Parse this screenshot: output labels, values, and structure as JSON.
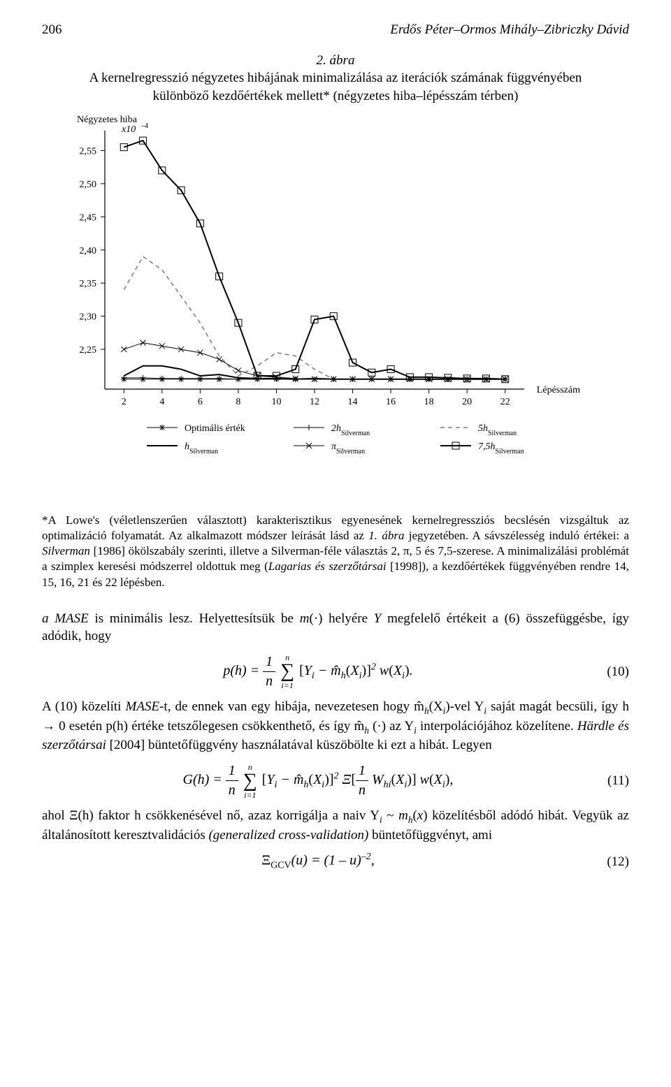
{
  "page_number": "206",
  "authors": "Erdős Péter–Ormos Mihály–Zibriczky Dávid",
  "figure": {
    "number": "2. ábra",
    "title_line1": "A kernelregresszió négyzetes hibájának minimalizálása az iterációk számának függvényében",
    "title_line2": "különböző kezdőértékek mellett* (négyzetes hiba–lépésszám térben)",
    "ylabel": "Négyzetes hiba",
    "yunit_prefix": "x",
    "yunit_base": "10",
    "yunit_exp": "–4",
    "xlabel": "Lépésszám",
    "xticks": [
      2,
      4,
      6,
      8,
      10,
      12,
      14,
      16,
      18,
      20,
      22
    ],
    "yticks": [
      2.25,
      2.3,
      2.35,
      2.4,
      2.45,
      2.5,
      2.55
    ],
    "ytick_labels": [
      "2,25",
      "2,30",
      "2,35",
      "2,40",
      "2,45",
      "2,50",
      "2,55"
    ],
    "ylim": [
      2.19,
      2.58
    ],
    "xlim": [
      1,
      23
    ],
    "plot_bg": "#ffffff",
    "axis_color": "#000000",
    "axis_width": 1.2,
    "series": {
      "optimal": {
        "label_pre": "Optimális érték",
        "color": "#000000",
        "width": 1.0,
        "marker": "star",
        "marker_size": 4,
        "points": [
          [
            2,
            2.205
          ],
          [
            3,
            2.205
          ],
          [
            4,
            2.205
          ],
          [
            5,
            2.205
          ],
          [
            6,
            2.205
          ],
          [
            7,
            2.205
          ],
          [
            8,
            2.205
          ],
          [
            9,
            2.205
          ],
          [
            10,
            2.205
          ],
          [
            11,
            2.205
          ],
          [
            12,
            2.205
          ],
          [
            13,
            2.205
          ],
          [
            14,
            2.205
          ],
          [
            15,
            2.205
          ],
          [
            16,
            2.205
          ],
          [
            17,
            2.205
          ],
          [
            18,
            2.205
          ],
          [
            19,
            2.205
          ],
          [
            20,
            2.205
          ],
          [
            21,
            2.205
          ],
          [
            22,
            2.205
          ]
        ]
      },
      "h": {
        "label_pre": "h",
        "label_sub": "Silverman",
        "color": "#000000",
        "width": 2.0,
        "marker": "none",
        "points": [
          [
            2,
            2.21
          ],
          [
            3,
            2.225
          ],
          [
            4,
            2.225
          ],
          [
            5,
            2.22
          ],
          [
            6,
            2.21
          ],
          [
            7,
            2.212
          ],
          [
            8,
            2.207
          ],
          [
            9,
            2.206
          ],
          [
            10,
            2.206
          ],
          [
            11,
            2.205
          ],
          [
            12,
            2.206
          ],
          [
            13,
            2.205
          ],
          [
            14,
            2.205
          ],
          [
            15,
            2.205
          ],
          [
            16,
            2.205
          ],
          [
            17,
            2.205
          ],
          [
            18,
            2.205
          ],
          [
            19,
            2.205
          ],
          [
            20,
            2.205
          ],
          [
            21,
            2.205
          ],
          [
            22,
            2.205
          ]
        ]
      },
      "two_h": {
        "label_pre": "2h",
        "label_sub": "Silverman",
        "color": "#000000",
        "width": 1.0,
        "marker": "plus",
        "marker_size": 4,
        "points": [
          [
            2,
            2.207
          ],
          [
            3,
            2.207
          ],
          [
            4,
            2.206
          ],
          [
            5,
            2.206
          ],
          [
            6,
            2.206
          ],
          [
            7,
            2.206
          ],
          [
            8,
            2.205
          ],
          [
            9,
            2.205
          ],
          [
            10,
            2.205
          ],
          [
            11,
            2.205
          ],
          [
            12,
            2.205
          ],
          [
            13,
            2.205
          ],
          [
            14,
            2.205
          ],
          [
            15,
            2.205
          ],
          [
            16,
            2.205
          ],
          [
            17,
            2.205
          ],
          [
            18,
            2.205
          ],
          [
            19,
            2.205
          ],
          [
            20,
            2.205
          ],
          [
            21,
            2.205
          ],
          [
            22,
            2.205
          ]
        ]
      },
      "pi": {
        "label_pre": "π",
        "label_sub": "Silverman",
        "color": "#000000",
        "width": 1.0,
        "marker": "x",
        "marker_size": 4,
        "points": [
          [
            2,
            2.25
          ],
          [
            3,
            2.26
          ],
          [
            4,
            2.255
          ],
          [
            5,
            2.25
          ],
          [
            6,
            2.245
          ],
          [
            7,
            2.235
          ],
          [
            8,
            2.218
          ],
          [
            9,
            2.21
          ],
          [
            10,
            2.208
          ],
          [
            11,
            2.206
          ],
          [
            12,
            2.205
          ],
          [
            13,
            2.205
          ],
          [
            14,
            2.205
          ],
          [
            15,
            2.205
          ],
          [
            16,
            2.205
          ],
          [
            17,
            2.205
          ],
          [
            18,
            2.205
          ],
          [
            19,
            2.205
          ],
          [
            20,
            2.205
          ],
          [
            21,
            2.205
          ],
          [
            22,
            2.205
          ]
        ]
      },
      "five_h": {
        "label_pre": "5h",
        "label_sub": "Silverman",
        "color": "#808080",
        "width": 1.6,
        "dash": "6,5",
        "marker": "none",
        "points": [
          [
            2,
            2.34
          ],
          [
            3,
            2.39
          ],
          [
            4,
            2.37
          ],
          [
            5,
            2.33
          ],
          [
            6,
            2.29
          ],
          [
            7,
            2.24
          ],
          [
            8,
            2.21
          ],
          [
            9,
            2.225
          ],
          [
            10,
            2.245
          ],
          [
            11,
            2.24
          ],
          [
            12,
            2.22
          ],
          [
            13,
            2.205
          ],
          [
            14,
            2.205
          ],
          [
            15,
            2.205
          ],
          [
            16,
            2.205
          ],
          [
            17,
            2.205
          ],
          [
            18,
            2.205
          ],
          [
            19,
            2.205
          ],
          [
            20,
            2.205
          ],
          [
            21,
            2.205
          ],
          [
            22,
            2.205
          ]
        ]
      },
      "seven5_h": {
        "label_pre": "7,5h",
        "label_sub": "Silverman",
        "color": "#000000",
        "width": 2.0,
        "marker": "square",
        "marker_size": 5,
        "points": [
          [
            2,
            2.555
          ],
          [
            3,
            2.565
          ],
          [
            4,
            2.52
          ],
          [
            5,
            2.49
          ],
          [
            6,
            2.44
          ],
          [
            7,
            2.36
          ],
          [
            8,
            2.29
          ],
          [
            9,
            2.21
          ],
          [
            10,
            2.21
          ],
          [
            11,
            2.22
          ],
          [
            12,
            2.295
          ],
          [
            13,
            2.3
          ],
          [
            14,
            2.23
          ],
          [
            15,
            2.215
          ],
          [
            16,
            2.22
          ],
          [
            17,
            2.208
          ],
          [
            18,
            2.208
          ],
          [
            19,
            2.207
          ],
          [
            20,
            2.206
          ],
          [
            21,
            2.206
          ],
          [
            22,
            2.205
          ]
        ]
      }
    },
    "legend_order": [
      [
        "optimal",
        "two_h",
        "five_h"
      ],
      [
        "h",
        "pi",
        "seven5_h"
      ]
    ],
    "label_fontsize": 14,
    "tick_fontsize": 14
  },
  "footnote_star": "*",
  "footnote_text_parts": [
    "A Lowe's (véletlenszerűen választott) karakterisztikus egyenesének kernelregressziós becslésén vizsgáltuk az optimalizáció folyamatát. Az alkalmazott módszer leírását lásd az ",
    "1. ábra",
    " jegyzetében. A sávszélesség induló értékei: a ",
    "Silverman",
    " [1986] ökölszabály szerinti, illetve a Silverman-féle választás 2, π, 5 és 7,5-szerese. A minimalizálási problémát a szimplex keresési módszerrel oldottuk meg (",
    "Lagarias és szerzőtársai",
    " [1998]), a kezdőértékek függvényében rendre 14, 15, 16, 21 és 22 lépésben."
  ],
  "para1": "a MASE is minimális lesz. Helyettesítsük be m(·) helyére Y megfelelő értékeit a (6) össze­függésbe, így adódik, hogy",
  "eq10_num": "(10)",
  "para2_parts": [
    "A (10) közelíti ",
    "MASE",
    "-t, de ennek van egy hibája, nevezetesen hogy m̂",
    "h",
    "(X",
    "i",
    ")-vel Y",
    "i",
    " saját magát becsüli, így h → 0 esetén p(h) értéke tetszőlegesen csökkenthető, és így m̂",
    "h",
    " (·) az Y",
    "i",
    " interpolációjához közelítene. ",
    "Härdle és szerzőtársai",
    " [2004] büntetőfüggvény használatá­val küszöbölte ki ezt a hibát. Legyen"
  ],
  "eq11_num": "(11)",
  "para3_parts": [
    "ahol Ξ(h) faktor h csökkenésével nő, azaz korrigálja a naiv Y",
    "i",
    " ~ m",
    "h",
    "(x) közelítésből adódó hibát. Vegyük az általánosított keresztvalidációs ",
    "(generalized cross-validation)",
    " büntető­függvényt, ami"
  ],
  "eq12_text": "Ξ",
  "eq12_sub": "GCV",
  "eq12_rest": "(u) = (1 – u)",
  "eq12_exp": "–2",
  "eq12_comma": ",",
  "eq12_num": "(12)"
}
